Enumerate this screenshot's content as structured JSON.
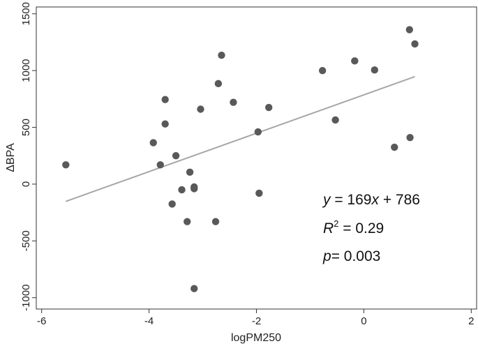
{
  "chart_data": {
    "type": "scatter",
    "xlabel": "logPM250",
    "ylabel": "ΔBPA",
    "xlim": [
      -6.1,
      2.1
    ],
    "ylim": [
      -1100,
      1560
    ],
    "x_ticks": [
      -6,
      -4,
      -2,
      0,
      2
    ],
    "x_tick_labels": [
      "-6",
      "-4",
      "-2",
      "0",
      "2"
    ],
    "y_ticks": [
      -1000,
      -500,
      0,
      500,
      1000,
      1500
    ],
    "y_tick_labels": [
      "-1000",
      "-500",
      "0",
      "500",
      "1000",
      "1500"
    ],
    "grid": false,
    "points": [
      {
        "x": -5.55,
        "y": 170
      },
      {
        "x": -3.92,
        "y": 365
      },
      {
        "x": -3.79,
        "y": 170
      },
      {
        "x": -3.7,
        "y": 745
      },
      {
        "x": -3.7,
        "y": 530
      },
      {
        "x": -3.57,
        "y": -175
      },
      {
        "x": -3.5,
        "y": 250
      },
      {
        "x": -3.39,
        "y": -50
      },
      {
        "x": -3.29,
        "y": -330
      },
      {
        "x": -3.24,
        "y": 105
      },
      {
        "x": -3.16,
        "y": -25
      },
      {
        "x": -3.16,
        "y": -40
      },
      {
        "x": -3.16,
        "y": -920
      },
      {
        "x": -3.04,
        "y": 660
      },
      {
        "x": -2.76,
        "y": -330
      },
      {
        "x": -2.71,
        "y": 885
      },
      {
        "x": -2.65,
        "y": 1135
      },
      {
        "x": -2.43,
        "y": 720
      },
      {
        "x": -1.97,
        "y": 460
      },
      {
        "x": -1.95,
        "y": -80
      },
      {
        "x": -1.77,
        "y": 675
      },
      {
        "x": -0.77,
        "y": 1000
      },
      {
        "x": -0.53,
        "y": 565
      },
      {
        "x": -0.17,
        "y": 1085
      },
      {
        "x": 0.2,
        "y": 1005
      },
      {
        "x": 0.57,
        "y": 325
      },
      {
        "x": 0.85,
        "y": 1360
      },
      {
        "x": 0.86,
        "y": 410
      },
      {
        "x": 0.95,
        "y": 1235
      }
    ],
    "fit_line": {
      "slope": 169,
      "intercept": 786,
      "x_range": [
        -5.55,
        0.95
      ]
    },
    "annotations": {
      "equation": {
        "y": "y",
        "eq": " = 169",
        "x": "x",
        "rest": " + 786"
      },
      "r2": {
        "R": "R",
        "sup": "2",
        "rest": " = 0.29"
      },
      "p": {
        "p": "p",
        "rest": "= 0.003"
      }
    },
    "colors": {
      "points": "#595959",
      "fit_line": "#a6a6a6",
      "axis": "#333333"
    }
  }
}
